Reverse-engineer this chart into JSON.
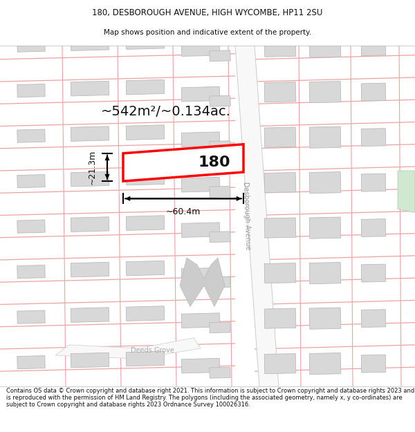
{
  "title_line1": "180, DESBOROUGH AVENUE, HIGH WYCOMBE, HP11 2SU",
  "title_line2": "Map shows position and indicative extent of the property.",
  "footer_text": "Contains OS data © Crown copyright and database right 2021. This information is subject to Crown copyright and database rights 2023 and is reproduced with the permission of HM Land Registry. The polygons (including the associated geometry, namely x, y co-ordinates) are subject to Crown copyright and database rights 2023 Ordnance Survey 100026316.",
  "map_bg": "#ffffff",
  "road_line_color": "#f0a0a0",
  "road_fill_color": "#f5f5f5",
  "road_outline_color": "#cccccc",
  "building_fill": "#d8d8d8",
  "building_edge": "#bbbbbb",
  "highlight_outline": "#ff0000",
  "road_label": "Desborough Avenue",
  "road_label2": "Deeds Grove",
  "area_label": "~542m²/~0.134ac.",
  "property_label": "180",
  "dim_width": "~60.4m",
  "dim_height": "~21.3m"
}
